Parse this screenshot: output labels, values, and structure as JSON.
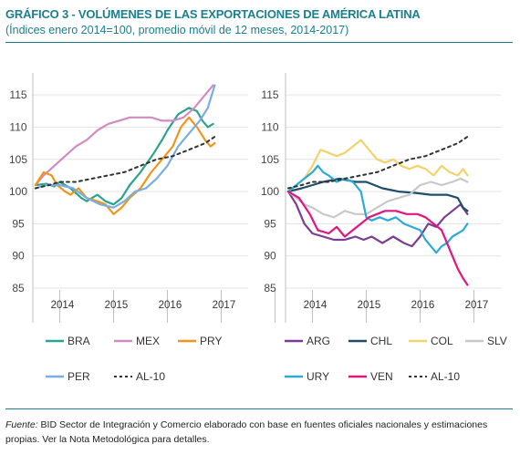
{
  "header": {
    "title": "GRÁFICO 3 - VOLÚMENES DE LAS EXPORTACIONES DE AMÉRICA LATINA",
    "subtitle": "(Índices enero 2014=100, promedio móvil de 12 meses, 2014-2017)"
  },
  "source": {
    "label": "Fuente:",
    "text": " BID Sector de Integración y Comercio elaborado con base en fuentes oficiales nacionales y estimaciones propias. Ver la Nota Metodológica para detalles."
  },
  "chart_data": [
    {
      "type": "line",
      "ylim": [
        85,
        117
      ],
      "yticks": [
        85,
        90,
        95,
        100,
        105,
        110,
        115
      ],
      "xlim": [
        2013.5,
        2017.5
      ],
      "x_tick_labels": [
        "2014",
        "2015",
        "2016",
        "2017"
      ],
      "legend_position": "bottom",
      "series": [
        {
          "name": "BRA",
          "color": "#2aa38f",
          "dash": false,
          "x": [
            2013.55,
            2013.75,
            2013.9,
            2014.0,
            2014.2,
            2014.4,
            2014.5,
            2014.7,
            2014.85,
            2015.0,
            2015.15,
            2015.3,
            2015.5,
            2015.75,
            2015.9,
            2016.0,
            2016.2,
            2016.4,
            2016.55,
            2016.65,
            2016.75,
            2016.85
          ],
          "y": [
            101,
            101.2,
            100.8,
            101.5,
            100.5,
            99,
            98.5,
            99.5,
            98.5,
            98,
            99,
            101,
            103,
            106,
            108,
            109.5,
            112,
            113,
            112.5,
            111,
            110,
            110.5
          ]
        },
        {
          "name": "MEX",
          "color": "#d08cc0",
          "dash": false,
          "x": [
            2013.55,
            2013.7,
            2013.9,
            2014.1,
            2014.3,
            2014.5,
            2014.7,
            2014.9,
            2015.1,
            2015.3,
            2015.5,
            2015.7,
            2015.9,
            2016.1,
            2016.3,
            2016.5,
            2016.7,
            2016.85
          ],
          "y": [
            101,
            102.5,
            104,
            105.5,
            107,
            108,
            109.5,
            110.5,
            111,
            111.5,
            111.5,
            111.5,
            111,
            111,
            111.5,
            113,
            115,
            116.5
          ]
        },
        {
          "name": "PRY",
          "color": "#f0951c",
          "dash": false,
          "x": [
            2013.55,
            2013.7,
            2013.85,
            2013.95,
            2014.1,
            2014.2,
            2014.35,
            2014.5,
            2014.7,
            2014.85,
            2015.0,
            2015.15,
            2015.3,
            2015.5,
            2015.7,
            2015.9,
            2016.1,
            2016.25,
            2016.4,
            2016.55,
            2016.7,
            2016.8,
            2016.88
          ],
          "y": [
            101,
            103,
            102.5,
            101,
            100,
            99.5,
            100.5,
            99,
            98.5,
            98,
            96.5,
            97.5,
            99,
            100.5,
            103,
            105,
            107,
            110,
            111.5,
            110,
            108,
            107,
            107.5
          ]
        },
        {
          "name": "PER",
          "color": "#7aaee0",
          "dash": false,
          "x": [
            2013.55,
            2013.75,
            2014.0,
            2014.25,
            2014.5,
            2014.75,
            2015.0,
            2015.2,
            2015.4,
            2015.6,
            2015.8,
            2016.0,
            2016.2,
            2016.4,
            2016.6,
            2016.75,
            2016.88
          ],
          "y": [
            100.5,
            101,
            101,
            100.5,
            99,
            98,
            97.5,
            98.5,
            100,
            100.5,
            102,
            104,
            107,
            109,
            111,
            113,
            116.5
          ]
        },
        {
          "name": "AL-10",
          "color": "#333333",
          "dash": true,
          "x": [
            2013.55,
            2013.8,
            2014.0,
            2014.3,
            2014.6,
            2014.9,
            2015.2,
            2015.5,
            2015.8,
            2016.1,
            2016.4,
            2016.7,
            2016.88
          ],
          "y": [
            100.5,
            101,
            101.5,
            101.5,
            102,
            102.5,
            103,
            104,
            105,
            105.5,
            106.5,
            107.5,
            108.5
          ]
        }
      ]
    },
    {
      "type": "line",
      "ylim": [
        85,
        117
      ],
      "yticks": [
        85,
        90,
        95,
        100,
        105,
        110,
        115
      ],
      "xlim": [
        2013.5,
        2017.5
      ],
      "x_tick_labels": [
        "2014",
        "2015",
        "2016",
        "2017"
      ],
      "legend_position": "bottom",
      "series": [
        {
          "name": "ARG",
          "color": "#7a3d8f",
          "dash": false,
          "x": [
            2013.55,
            2013.7,
            2013.85,
            2014.0,
            2014.2,
            2014.4,
            2014.6,
            2014.8,
            2014.95,
            2015.1,
            2015.3,
            2015.5,
            2015.7,
            2015.85,
            2016.0,
            2016.15,
            2016.3,
            2016.45,
            2016.6,
            2016.75,
            2016.88
          ],
          "y": [
            100,
            98,
            95,
            93.5,
            93,
            92.5,
            92.5,
            93,
            92.5,
            93,
            92,
            93,
            92,
            91.5,
            93,
            95,
            94.5,
            96,
            97,
            98,
            96.5
          ]
        },
        {
          "name": "CHL",
          "color": "#1d4e6b",
          "dash": false,
          "x": [
            2013.55,
            2013.8,
            2014.0,
            2014.2,
            2014.5,
            2014.8,
            2015.0,
            2015.3,
            2015.6,
            2015.9,
            2016.2,
            2016.5,
            2016.7,
            2016.8,
            2016.88
          ],
          "y": [
            100,
            100.5,
            101,
            101.5,
            102,
            101.5,
            101.5,
            100.5,
            100,
            99.8,
            99.5,
            99.5,
            99,
            97.5,
            97
          ]
        },
        {
          "name": "COL",
          "color": "#f3d26b",
          "dash": false,
          "x": [
            2013.55,
            2013.7,
            2013.85,
            2014.0,
            2014.15,
            2014.3,
            2014.45,
            2014.6,
            2014.75,
            2014.9,
            2015.05,
            2015.2,
            2015.35,
            2015.5,
            2015.65,
            2015.8,
            2015.95,
            2016.1,
            2016.25,
            2016.4,
            2016.55,
            2016.7,
            2016.8,
            2016.88
          ],
          "y": [
            100,
            101,
            102,
            104,
            106.5,
            106,
            105.5,
            106,
            107,
            108,
            106.5,
            105,
            104.5,
            105,
            104,
            103.5,
            104,
            103.5,
            102.5,
            104,
            103,
            102.5,
            103.5,
            102.5
          ]
        },
        {
          "name": "SLV",
          "color": "#c8c8c8",
          "dash": false,
          "x": [
            2013.55,
            2013.7,
            2013.85,
            2014.0,
            2014.2,
            2014.4,
            2014.6,
            2014.8,
            2015.0,
            2015.2,
            2015.4,
            2015.6,
            2015.8,
            2016.0,
            2016.2,
            2016.4,
            2016.6,
            2016.75,
            2016.88
          ],
          "y": [
            100,
            99,
            98,
            97.5,
            96.5,
            96,
            97,
            96.5,
            96.5,
            97.5,
            98.5,
            99,
            99.5,
            101,
            101.5,
            101,
            101.5,
            102,
            101.5
          ]
        },
        {
          "name": "URY",
          "color": "#2ba9d9",
          "dash": false,
          "x": [
            2013.55,
            2013.7,
            2013.85,
            2014.0,
            2014.1,
            2014.2,
            2014.3,
            2014.45,
            2014.6,
            2014.75,
            2014.9,
            2015.0,
            2015.1,
            2015.25,
            2015.4,
            2015.55,
            2015.7,
            2015.85,
            2016.0,
            2016.1,
            2016.2,
            2016.3,
            2016.4,
            2016.5,
            2016.6,
            2016.7,
            2016.8,
            2016.88
          ],
          "y": [
            100,
            101,
            102,
            103,
            104,
            103,
            102.5,
            101.5,
            102,
            101.5,
            100,
            96,
            95.5,
            96,
            95.5,
            96,
            95,
            94.5,
            94,
            92.5,
            91.5,
            90.5,
            91.5,
            92,
            93,
            93.5,
            94,
            95
          ]
        },
        {
          "name": "VEN",
          "color": "#e0157f",
          "dash": false,
          "x": [
            2013.55,
            2013.75,
            2013.95,
            2014.1,
            2014.3,
            2014.45,
            2014.6,
            2014.75,
            2014.9,
            2015.05,
            2015.2,
            2015.35,
            2015.55,
            2015.75,
            2015.95,
            2016.1,
            2016.25,
            2016.4,
            2016.5,
            2016.6,
            2016.7,
            2016.8,
            2016.88
          ],
          "y": [
            100,
            99,
            96.5,
            94,
            93.5,
            94.5,
            93,
            94,
            95,
            96,
            96.5,
            97,
            97,
            96.5,
            96.5,
            96,
            95,
            94,
            92,
            90,
            88,
            86.5,
            85.5
          ]
        },
        {
          "name": "AL-10",
          "color": "#333333",
          "dash": true,
          "x": [
            2013.55,
            2013.8,
            2014.0,
            2014.3,
            2014.6,
            2014.9,
            2015.2,
            2015.5,
            2015.8,
            2016.1,
            2016.4,
            2016.7,
            2016.88
          ],
          "y": [
            100.5,
            101,
            101.5,
            101.5,
            102,
            102.5,
            103,
            104,
            105,
            105.5,
            106.5,
            107.5,
            108.5
          ]
        }
      ]
    }
  ]
}
